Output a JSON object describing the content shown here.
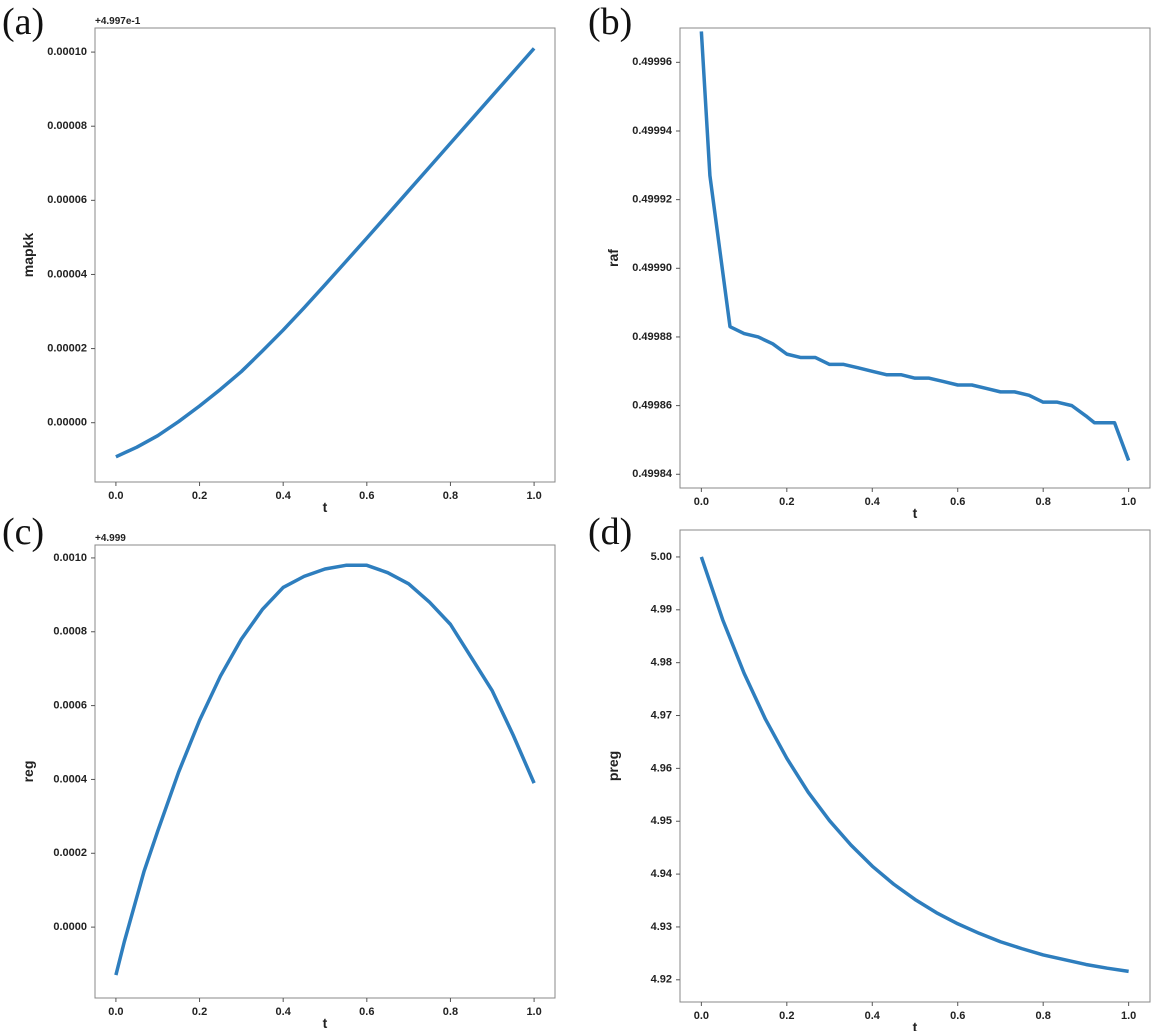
{
  "chart_data": [
    {
      "type": "line",
      "panel_label": "(a)",
      "offset_text": "+4.997e-1",
      "xlabel": "t",
      "ylabel": "mapkk",
      "color": "#2e7ebe",
      "x": [
        0,
        0.05,
        0.1,
        0.15,
        0.2,
        0.25,
        0.3,
        0.35,
        0.4,
        0.45,
        0.5,
        0.55,
        0.6,
        0.65,
        0.7,
        0.75,
        0.8,
        0.85,
        0.9,
        0.95,
        1.0
      ],
      "values": [
        -9.2e-06,
        -6.6e-06,
        -3.5e-06,
        3e-07,
        4.5e-06,
        9e-06,
        1.38e-05,
        1.93e-05,
        2.5e-05,
        3.1e-05,
        3.72e-05,
        4.35e-05,
        4.98e-05,
        5.62e-05,
        6.26e-05,
        6.9e-05,
        7.54e-05,
        8.18e-05,
        8.82e-05,
        9.46e-05,
        0.000101
      ],
      "xlim": [
        -0.05,
        1.05
      ],
      "ylim": [
        -1.6e-05,
        0.0001065
      ],
      "xticks": [
        {
          "value": 0,
          "label": "0.0"
        },
        {
          "value": 0.2,
          "label": "0.2"
        },
        {
          "value": 0.4,
          "label": "0.4"
        },
        {
          "value": 0.6,
          "label": "0.6"
        },
        {
          "value": 0.8,
          "label": "0.8"
        },
        {
          "value": 1,
          "label": "1.0"
        }
      ],
      "yticks": [
        {
          "value": 0,
          "label": "0.00000"
        },
        {
          "value": 2e-05,
          "label": "0.00002"
        },
        {
          "value": 4e-05,
          "label": "0.00004"
        },
        {
          "value": 6e-05,
          "label": "0.00006"
        },
        {
          "value": 8e-05,
          "label": "0.00008"
        },
        {
          "value": 0.0001,
          "label": "0.00010"
        }
      ]
    },
    {
      "type": "line",
      "panel_label": "(b)",
      "xlabel": "t",
      "ylabel": "raf",
      "color": "#2e7ebe",
      "x": [
        0,
        0.02,
        0.067,
        0.1,
        0.133,
        0.167,
        0.2,
        0.233,
        0.267,
        0.3,
        0.333,
        0.367,
        0.4,
        0.433,
        0.467,
        0.5,
        0.533,
        0.567,
        0.6,
        0.633,
        0.667,
        0.7,
        0.733,
        0.767,
        0.8,
        0.833,
        0.867,
        0.9,
        0.92,
        0.967,
        1.0
      ],
      "values": [
        0.499969,
        0.499927,
        0.499883,
        0.499881,
        0.49988,
        0.499878,
        0.499875,
        0.499874,
        0.499874,
        0.499872,
        0.499872,
        0.499871,
        0.49987,
        0.499869,
        0.499869,
        0.499868,
        0.499868,
        0.499867,
        0.499866,
        0.499866,
        0.499865,
        0.499864,
        0.499864,
        0.499863,
        0.499861,
        0.499861,
        0.49986,
        0.499857,
        0.499855,
        0.499855,
        0.499844
      ],
      "xlim": [
        -0.05,
        1.05
      ],
      "ylim": [
        0.499836,
        0.49997
      ],
      "xticks": [
        {
          "value": 0,
          "label": "0.0"
        },
        {
          "value": 0.2,
          "label": "0.2"
        },
        {
          "value": 0.4,
          "label": "0.4"
        },
        {
          "value": 0.6,
          "label": "0.6"
        },
        {
          "value": 0.8,
          "label": "0.8"
        },
        {
          "value": 1,
          "label": "1.0"
        }
      ],
      "yticks": [
        0.49984,
        0.49986,
        0.49988,
        {
          "value": 0.4999,
          "label": "0.49990"
        },
        0.49992,
        0.49994,
        0.49996
      ]
    },
    {
      "type": "line",
      "panel_label": "(c)",
      "offset_text": "+4.999",
      "xlabel": "t",
      "ylabel": "reg",
      "color": "#2e7ebe",
      "x": [
        0,
        0.02,
        0.067,
        0.1,
        0.15,
        0.2,
        0.25,
        0.3,
        0.35,
        0.4,
        0.45,
        0.5,
        0.55,
        0.6,
        0.65,
        0.7,
        0.75,
        0.8,
        0.85,
        0.9,
        0.95,
        1.0
      ],
      "values": [
        -0.00013,
        -4e-05,
        0.00015,
        0.00026,
        0.00042,
        0.00056,
        0.00068,
        0.00078,
        0.00086,
        0.00092,
        0.00095,
        0.00097,
        0.00098,
        0.00098,
        0.00096,
        0.00093,
        0.00088,
        0.00082,
        0.00073,
        0.00064,
        0.00052,
        0.00039
      ],
      "xlim": [
        -0.05,
        1.05
      ],
      "ylim": [
        -0.000192,
        0.001035
      ],
      "xticks": [
        {
          "value": 0,
          "label": "0.0"
        },
        {
          "value": 0.2,
          "label": "0.2"
        },
        {
          "value": 0.4,
          "label": "0.4"
        },
        {
          "value": 0.6,
          "label": "0.6"
        },
        {
          "value": 0.8,
          "label": "0.8"
        },
        {
          "value": 1,
          "label": "1.0"
        }
      ],
      "yticks": [
        {
          "value": 0,
          "label": "0.0000"
        },
        {
          "value": 0.0002,
          "label": "0.0002"
        },
        {
          "value": 0.0004,
          "label": "0.0004"
        },
        {
          "value": 0.0006,
          "label": "0.0006"
        },
        {
          "value": 0.0008,
          "label": "0.0008"
        },
        {
          "value": 0.001,
          "label": "0.0010"
        }
      ]
    },
    {
      "type": "line",
      "panel_label": "(d)",
      "xlabel": "t",
      "ylabel": "preg",
      "color": "#2e7ebe",
      "x": [
        0,
        0.05,
        0.1,
        0.15,
        0.2,
        0.25,
        0.3,
        0.35,
        0.4,
        0.45,
        0.5,
        0.55,
        0.6,
        0.65,
        0.7,
        0.75,
        0.8,
        0.85,
        0.9,
        0.95,
        1.0
      ],
      "values": [
        5.0,
        4.9881,
        4.978,
        4.9693,
        4.9619,
        4.9555,
        4.9501,
        4.9455,
        4.9415,
        4.9381,
        4.9352,
        4.9327,
        4.9306,
        4.9288,
        4.9272,
        4.9259,
        4.9247,
        4.9238,
        4.9229,
        4.9222,
        4.9216
      ],
      "xlim": [
        -0.05,
        1.05
      ],
      "ylim": [
        4.9158,
        5.0051
      ],
      "xticks": [
        {
          "value": 0,
          "label": "0.0"
        },
        {
          "value": 0.2,
          "label": "0.2"
        },
        {
          "value": 0.4,
          "label": "0.4"
        },
        {
          "value": 0.6,
          "label": "0.6"
        },
        {
          "value": 0.8,
          "label": "0.8"
        },
        {
          "value": 1,
          "label": "1.0"
        }
      ],
      "yticks": [
        {
          "value": 4.92,
          "label": "4.92"
        },
        {
          "value": 4.93,
          "label": "4.93"
        },
        {
          "value": 4.94,
          "label": "4.94"
        },
        {
          "value": 4.95,
          "label": "4.95"
        },
        {
          "value": 4.96,
          "label": "4.96"
        },
        {
          "value": 4.97,
          "label": "4.97"
        },
        {
          "value": 4.98,
          "label": "4.98"
        },
        {
          "value": 4.99,
          "label": "4.99"
        },
        {
          "value": 5,
          "label": "5.00"
        }
      ]
    }
  ]
}
